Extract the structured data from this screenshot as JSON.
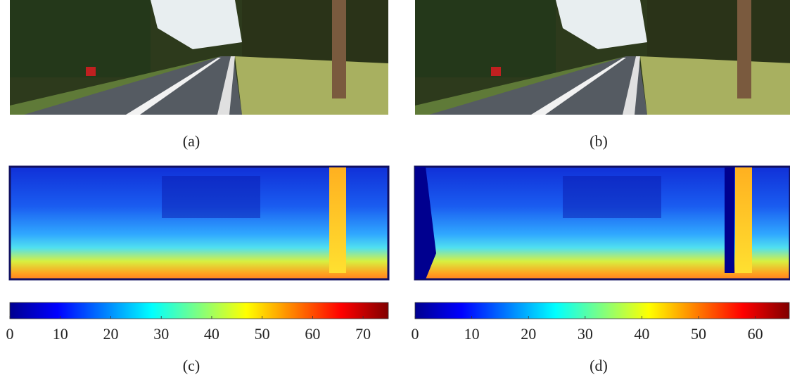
{
  "panels": [
    {
      "label": "(a)"
    },
    {
      "label": "(b)"
    },
    {
      "label": "(c)"
    },
    {
      "label": "(d)"
    }
  ],
  "colorbars": [
    {
      "lim": [
        0,
        75
      ],
      "ticks": [
        0,
        10,
        20,
        30,
        40,
        50,
        60,
        70
      ]
    },
    {
      "lim": [
        0,
        66
      ],
      "ticks": [
        0,
        10,
        20,
        30,
        40,
        50,
        60
      ]
    }
  ]
}
